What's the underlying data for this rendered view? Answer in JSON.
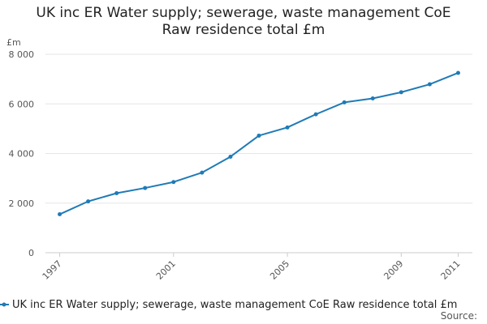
{
  "chart_data": {
    "type": "line",
    "title_line_1": "UK inc ER Water supply; sewerage, waste management CoE",
    "title_line_2": "Raw residence total £m",
    "ylabel": "£m",
    "xlabel": "",
    "ylim": [
      0,
      8000
    ],
    "y_ticks": [
      {
        "value": 0,
        "label": "0"
      },
      {
        "value": 2000,
        "label": "2 000"
      },
      {
        "value": 4000,
        "label": "4 000"
      },
      {
        "value": 6000,
        "label": "6 000"
      },
      {
        "value": 8000,
        "label": "8 000"
      }
    ],
    "x_ticks": [
      "1997",
      "2001",
      "2005",
      "2009",
      "2011"
    ],
    "grid": true,
    "legend_position": "bottom",
    "legend_label": "UK inc ER Water supply; sewerage, waste management CoE Raw residence total £m",
    "source_label": "Source:",
    "colors": {
      "series": "#1f7bb6",
      "grid": "#e6e6e6",
      "axis": "#cccccc"
    },
    "series": [
      {
        "name": "UK inc ER Water supply; sewerage, waste management CoE Raw residence total £m",
        "x": [
          1997,
          1998,
          1999,
          2000,
          2001,
          2002,
          2003,
          2004,
          2005,
          2006,
          2007,
          2008,
          2009,
          2010,
          2011
        ],
        "values": [
          1550,
          2070,
          2400,
          2610,
          2850,
          3230,
          3870,
          4720,
          5050,
          5580,
          6060,
          6220,
          6470,
          6790,
          7250
        ]
      }
    ]
  }
}
